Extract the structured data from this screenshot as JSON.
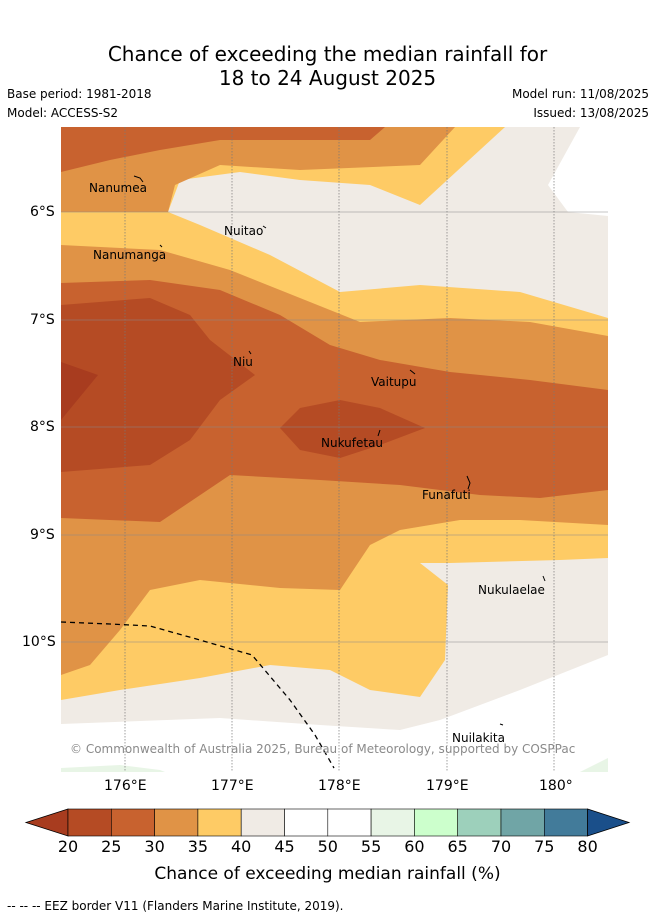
{
  "header": {
    "title_line1": "Chance of exceeding the median rainfall for",
    "title_line2": "18 to 24 August 2025",
    "base_period": "Base period: 1981-2018",
    "model": "Model: ACCESS-S2",
    "model_run": "Model run: 11/08/2025",
    "issued": "Issued: 13/08/2025"
  },
  "map": {
    "x_ticks": [
      "176°E",
      "177°E",
      "178°E",
      "179°E",
      "180°"
    ],
    "y_ticks": [
      "6°S",
      "7°S",
      "8°S",
      "9°S",
      "10°S"
    ],
    "places": [
      "Nanumea",
      "Nuitao",
      "Nanumanga",
      "Niu",
      "Vaitupu",
      "Nukufetau",
      "Funafuti",
      "Nukulaelae",
      "Nuilakita"
    ],
    "copyright": "© Commonwealth of Australia 2025, Bureau of Meteorology, supported by COSPPac"
  },
  "colorbar": {
    "ticks": [
      "20",
      "25",
      "30",
      "35",
      "40",
      "45",
      "50",
      "55",
      "60",
      "65",
      "70",
      "75",
      "80"
    ],
    "colors": [
      "#a83c1f",
      "#b54b24",
      "#c8622f",
      "#e09346",
      "#fecb65",
      "#f0ebe5",
      "#ffffff",
      "#ffffff",
      "#e8f5e6",
      "#ccffcc",
      "#9dd0bb",
      "#70a5a6",
      "#427b9a",
      "#1a4f8a"
    ],
    "label": "Chance of exceeding median rainfall (%)"
  },
  "footer": {
    "eez_legend": "-- -- -- EEZ border V11 (Flanders Marine Institute, 2019)."
  }
}
